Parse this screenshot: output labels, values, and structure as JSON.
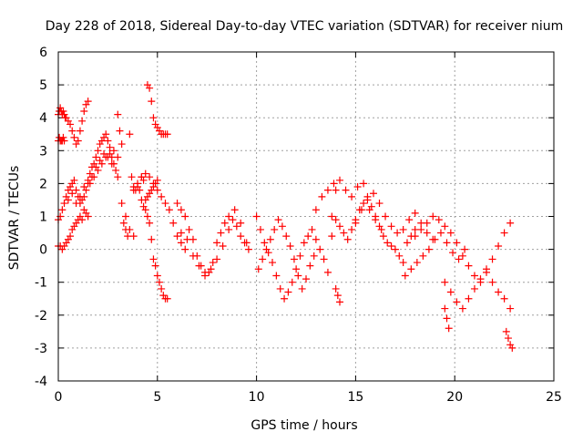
{
  "chart_data": {
    "type": "scatter",
    "title": "Day 228 of 2018, Sidereal Day-to-day VTEC variation (SDTVAR) for receiver nium",
    "xlabel": "GPS time / hours",
    "ylabel": "SDTVAR / TECUs",
    "xlim": [
      0,
      25
    ],
    "ylim": [
      -4,
      6
    ],
    "xticks": [
      0,
      5,
      10,
      15,
      20,
      25
    ],
    "yticks": [
      -4,
      -3,
      -2,
      -1,
      0,
      1,
      2,
      3,
      4,
      5,
      6
    ],
    "xtick_labels": [
      "0",
      "5",
      "10",
      "15",
      "20",
      "25"
    ],
    "ytick_labels": [
      "-4",
      "-3",
      "-2",
      "-1",
      "0",
      "1",
      "2",
      "3",
      "4",
      "5",
      "6"
    ],
    "grid": true,
    "marker": "+",
    "marker_color": "#ff0000",
    "series": [
      {
        "name": "SDTVAR",
        "x": [
          0.0,
          0.05,
          0.1,
          0.15,
          0.2,
          0.25,
          0.3,
          0.35,
          0.4,
          0.5,
          0.6,
          0.7,
          0.8,
          0.9,
          1.0,
          1.1,
          1.2,
          1.3,
          1.4,
          1.5,
          0.0,
          0.05,
          0.1,
          0.15,
          0.2,
          0.25,
          0.3,
          0.0,
          0.1,
          0.2,
          0.3,
          0.4,
          0.5,
          0.6,
          0.7,
          0.8,
          0.9,
          1.0,
          1.1,
          1.2,
          1.3,
          1.4,
          1.5,
          0.0,
          0.1,
          0.2,
          0.3,
          0.4,
          0.5,
          0.6,
          0.7,
          0.8,
          0.9,
          1.0,
          1.1,
          1.2,
          1.3,
          1.4,
          1.5,
          1.6,
          1.7,
          1.8,
          1.9,
          2.0,
          2.1,
          2.2,
          2.3,
          2.4,
          2.5,
          2.6,
          2.7,
          2.8,
          2.9,
          3.0,
          0.5,
          0.7,
          0.9,
          1.1,
          1.3,
          1.5,
          1.7,
          1.9,
          2.1,
          2.3,
          2.5,
          2.7,
          1.6,
          1.8,
          2.0,
          2.2,
          2.4,
          2.6,
          2.8,
          3.0,
          3.2,
          3.4,
          3.6,
          3.8,
          3.0,
          3.1,
          3.2,
          3.3,
          3.4,
          3.5,
          3.6,
          3.7,
          3.8,
          3.9,
          4.0,
          4.1,
          4.2,
          4.3,
          4.4,
          4.5,
          4.6,
          4.7,
          4.8,
          4.9,
          5.0,
          4.5,
          4.6,
          4.7,
          4.8,
          4.9,
          5.0,
          5.1,
          5.2,
          5.3,
          5.4,
          5.5,
          4.2,
          4.3,
          4.4,
          4.5,
          4.6,
          4.7,
          4.8,
          4.9,
          5.0,
          5.1,
          5.2,
          5.3,
          5.4,
          5.5,
          3.8,
          4.0,
          4.2,
          4.4,
          4.6,
          4.8,
          5.0,
          5.2,
          5.4,
          5.6,
          5.8,
          6.0,
          6.2,
          6.4,
          6.0,
          6.2,
          6.4,
          6.6,
          6.8,
          7.0,
          7.2,
          7.4,
          7.6,
          7.8,
          8.0,
          8.2,
          8.4,
          8.6,
          8.8,
          9.0,
          9.2,
          9.4,
          9.6,
          6.2,
          6.5,
          6.8,
          7.1,
          7.4,
          7.7,
          8.0,
          8.3,
          8.6,
          8.9,
          9.2,
          9.5,
          10.0,
          10.2,
          10.4,
          10.6,
          10.8,
          11.0,
          11.2,
          11.4,
          11.6,
          11.8,
          12.0,
          12.2,
          12.4,
          12.6,
          12.8,
          13.0,
          13.2,
          13.4,
          13.6,
          13.8,
          14.0,
          10.1,
          10.3,
          10.5,
          10.7,
          10.9,
          11.1,
          11.3,
          11.5,
          11.7,
          11.9,
          12.1,
          12.3,
          12.5,
          12.7,
          12.9,
          13.0,
          13.3,
          13.6,
          13.9,
          14.2,
          14.5,
          14.8,
          15.1,
          15.4,
          15.7,
          16.0,
          16.3,
          13.8,
          14.0,
          14.2,
          14.4,
          14.6,
          14.8,
          15.0,
          15.2,
          15.4,
          15.6,
          15.8,
          16.0,
          16.2,
          16.4,
          16.6,
          16.8,
          17.0,
          17.2,
          17.4,
          17.6,
          17.8,
          18.0,
          15.0,
          15.3,
          15.6,
          15.9,
          16.2,
          16.5,
          16.8,
          17.1,
          17.4,
          17.7,
          18.0,
          18.3,
          18.6,
          18.9,
          17.5,
          17.8,
          18.1,
          18.4,
          18.7,
          19.0,
          19.3,
          19.6,
          19.9,
          20.2,
          20.5,
          18.0,
          18.3,
          18.6,
          18.9,
          19.2,
          19.5,
          19.8,
          20.1,
          20.4,
          20.7,
          21.0,
          21.3,
          21.6,
          21.9,
          22.2,
          22.5,
          22.8,
          19.5,
          19.8,
          20.1,
          20.4,
          20.7,
          21.0,
          21.3,
          21.6,
          21.9,
          22.2,
          22.5,
          22.8,
          14.0,
          14.1,
          14.2,
          19.5,
          19.6,
          19.7,
          22.6,
          22.7,
          22.8,
          22.9
        ],
        "y": [
          4.1,
          4.2,
          4.3,
          4.2,
          4.1,
          4.2,
          4.1,
          4.0,
          4.0,
          3.9,
          3.8,
          3.6,
          3.4,
          3.2,
          3.3,
          3.6,
          3.9,
          4.2,
          4.4,
          4.5,
          3.3,
          3.4,
          3.3,
          3.3,
          3.3,
          3.4,
          3.3,
          0.1,
          0.1,
          0.0,
          0.1,
          0.2,
          0.3,
          0.4,
          0.6,
          0.7,
          0.8,
          0.9,
          1.0,
          0.9,
          1.2,
          1.1,
          1.0,
          0.9,
          1.0,
          1.2,
          1.4,
          1.6,
          1.8,
          1.9,
          2.0,
          2.1,
          1.8,
          1.6,
          1.4,
          1.5,
          1.6,
          1.8,
          2.1,
          2.3,
          2.5,
          2.6,
          2.8,
          3.0,
          3.2,
          3.3,
          3.4,
          3.5,
          3.3,
          3.1,
          2.8,
          2.6,
          2.4,
          2.2,
          1.5,
          1.7,
          1.4,
          1.6,
          1.9,
          2.0,
          2.2,
          2.5,
          2.7,
          2.9,
          2.8,
          2.6,
          2.0,
          2.2,
          2.4,
          2.6,
          2.8,
          2.9,
          3.0,
          2.8,
          1.4,
          1.0,
          0.6,
          0.4,
          4.1,
          3.6,
          3.2,
          0.8,
          0.6,
          0.4,
          3.5,
          2.2,
          1.9,
          1.8,
          1.9,
          1.8,
          2.2,
          2.1,
          1.5,
          1.6,
          1.7,
          1.8,
          1.9,
          2.0,
          2.1,
          5.0,
          4.9,
          4.5,
          4.0,
          3.8,
          3.7,
          3.6,
          3.5,
          3.5,
          3.5,
          3.5,
          1.5,
          1.3,
          1.2,
          1.0,
          0.8,
          0.3,
          -0.3,
          -0.5,
          -0.8,
          -1.0,
          -1.2,
          -1.4,
          -1.5,
          -1.5,
          1.8,
          2.0,
          2.2,
          2.3,
          2.2,
          2.0,
          1.8,
          1.6,
          1.4,
          1.2,
          0.8,
          0.4,
          0.2,
          0.0,
          1.4,
          1.2,
          1.0,
          0.6,
          0.3,
          -0.2,
          -0.5,
          -0.8,
          -0.7,
          -0.4,
          0.2,
          0.5,
          0.8,
          1.0,
          0.9,
          0.7,
          0.4,
          0.2,
          0.0,
          0.5,
          0.3,
          -0.2,
          -0.5,
          -0.7,
          -0.6,
          -0.3,
          0.1,
          0.6,
          1.2,
          0.8,
          0.2,
          1.0,
          0.6,
          0.2,
          -0.1,
          -0.4,
          -0.8,
          -1.2,
          -1.5,
          -1.3,
          -1.0,
          -0.6,
          -0.2,
          0.2,
          0.4,
          0.6,
          0.3,
          0.0,
          -0.3,
          -0.7,
          0.4,
          1.8,
          -0.6,
          -0.3,
          0.0,
          0.3,
          0.6,
          0.9,
          0.7,
          0.4,
          0.1,
          -0.3,
          -0.8,
          -1.2,
          -0.9,
          -0.5,
          -0.2,
          1.2,
          1.6,
          1.8,
          2.0,
          2.1,
          1.8,
          1.6,
          1.9,
          2.0,
          1.2,
          0.9,
          0.6,
          1.0,
          0.9,
          0.7,
          0.5,
          0.3,
          0.6,
          0.9,
          1.2,
          1.4,
          1.6,
          1.3,
          1.0,
          0.7,
          0.4,
          0.2,
          0.1,
          0.0,
          -0.2,
          -0.4,
          0.2,
          0.4,
          0.6,
          0.8,
          1.2,
          1.5,
          1.7,
          1.4,
          1.0,
          0.7,
          0.5,
          0.6,
          0.9,
          1.1,
          0.8,
          0.5,
          0.3,
          -0.8,
          -0.6,
          -0.4,
          -0.2,
          0.0,
          0.3,
          0.5,
          0.2,
          -0.1,
          -0.3,
          0.0,
          0.4,
          0.6,
          0.8,
          1.0,
          0.9,
          0.7,
          0.5,
          0.2,
          -0.2,
          -0.5,
          -0.8,
          -1.0,
          -0.7,
          -0.3,
          0.1,
          0.5,
          0.8,
          -1.0,
          -1.3,
          -1.6,
          -1.8,
          -1.5,
          -1.2,
          -0.9,
          -0.6,
          -1.0,
          -1.3,
          -1.5,
          -1.8,
          -1.2,
          -1.4,
          -1.6,
          -1.8,
          -2.1,
          -2.4,
          -2.5,
          -2.7,
          -2.9,
          -3.0
        ]
      }
    ]
  }
}
